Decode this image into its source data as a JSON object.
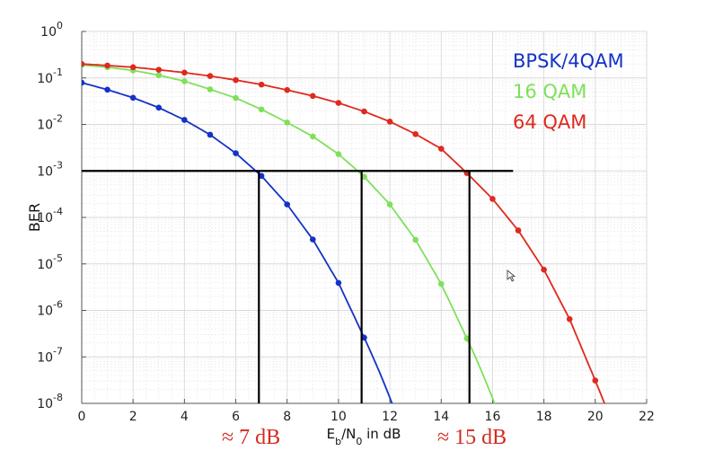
{
  "chart_data": {
    "type": "line",
    "title": "",
    "xlabel_parts": {
      "main": "E",
      "sub1": "b",
      "mid": "/N",
      "sub2": "0",
      "tail": " in dB"
    },
    "ylabel": "BER",
    "xlim": [
      0,
      22
    ],
    "ylim_log10": [
      -8,
      0
    ],
    "y_scale": "log",
    "grid": true,
    "x_ticks": [
      "0",
      "2",
      "4",
      "6",
      "8",
      "10",
      "12",
      "14",
      "16",
      "18",
      "20",
      "22"
    ],
    "y_ticks": [
      {
        "base": "10",
        "exp": "0"
      },
      {
        "base": "10",
        "exp": "-1"
      },
      {
        "base": "10",
        "exp": "-2"
      },
      {
        "base": "10",
        "exp": "-3"
      },
      {
        "base": "10",
        "exp": "-4"
      },
      {
        "base": "10",
        "exp": "-5"
      },
      {
        "base": "10",
        "exp": "-6"
      },
      {
        "base": "10",
        "exp": "-7"
      },
      {
        "base": "10",
        "exp": "-8"
      }
    ],
    "legend_position": "top-right",
    "series": [
      {
        "name": "BPSK/4QAM",
        "color": "#1432c8",
        "x": [
          0,
          1,
          2,
          3,
          4,
          5,
          6,
          7,
          8,
          9,
          10,
          11
        ],
        "y": [
          0.079,
          0.056,
          0.0375,
          0.023,
          0.0125,
          0.006,
          0.0024,
          0.00078,
          0.00019,
          3.35e-05,
          3.9e-06,
          2.6e-07
        ]
      },
      {
        "name": "16 QAM",
        "color": "#7fe05a",
        "x": [
          0,
          1,
          2,
          3,
          4,
          5,
          6,
          7,
          8,
          9,
          10,
          11,
          12,
          13,
          14,
          15
        ],
        "y": [
          0.19,
          0.17,
          0.145,
          0.115,
          0.085,
          0.057,
          0.037,
          0.021,
          0.011,
          0.0055,
          0.0023,
          0.00075,
          0.00019,
          3.3e-05,
          3.7e-06,
          2.5e-07
        ]
      },
      {
        "name": "64 QAM",
        "color": "#e0281e",
        "x": [
          0,
          1,
          2,
          3,
          4,
          5,
          6,
          7,
          8,
          9,
          10,
          11,
          12,
          13,
          14,
          15,
          16,
          17,
          18,
          19,
          20
        ],
        "y": [
          0.2,
          0.185,
          0.17,
          0.15,
          0.13,
          0.11,
          0.09,
          0.072,
          0.055,
          0.041,
          0.029,
          0.019,
          0.0115,
          0.0062,
          0.003,
          0.0009,
          0.00025,
          5.25e-05,
          7.5e-06,
          6.5e-07,
          3.1e-08
        ]
      }
    ],
    "threshold": {
      "ber": 0.001,
      "x_end": 16.8
    },
    "markers": [
      {
        "series": "BPSK/4QAM",
        "x": 6.9
      },
      {
        "series": "16 QAM",
        "x": 10.9
      },
      {
        "series": "64 QAM",
        "x": 15.1
      }
    ],
    "annotations": [
      "≈ 7 dB",
      "≈ 15 dB"
    ]
  }
}
